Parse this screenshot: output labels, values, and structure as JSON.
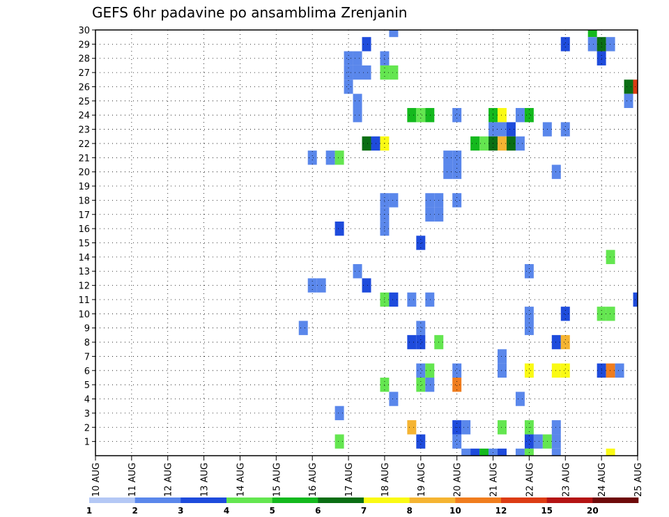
{
  "chart_data": {
    "type": "heatmap",
    "title": "GEFS 6hr padavine po ansamblima Zrenjanin",
    "xlabel": "",
    "ylabel": "",
    "x_ticks": [
      "10 AUG",
      "11 AUG",
      "12 AUG",
      "13 AUG",
      "14 AUG",
      "15 AUG",
      "16 AUG",
      "17 AUG",
      "18 AUG",
      "19 AUG",
      "20 AUG",
      "21 AUG",
      "22 AUG",
      "23 AUG",
      "24 AUG",
      "25 AUG"
    ],
    "x_unit": "days since 10 AUG",
    "x_range": [
      0,
      15
    ],
    "y_ticks": [
      1,
      2,
      3,
      4,
      5,
      6,
      7,
      8,
      9,
      10,
      11,
      12,
      13,
      14,
      15,
      16,
      17,
      18,
      19,
      20,
      21,
      22,
      23,
      24,
      25,
      26,
      27,
      28,
      29,
      30
    ],
    "y_range": [
      0,
      30
    ],
    "grid": true,
    "colorbar": {
      "levels": [
        "1",
        "2",
        "3",
        "4",
        "5",
        "6",
        "7",
        "8",
        "10",
        "12",
        "15",
        "20"
      ],
      "colors": [
        "#b4c8f5",
        "#5a87eb",
        "#1e4bdc",
        "#64e650",
        "#14b91e",
        "#0a6e14",
        "#fafa14",
        "#f5b432",
        "#f07d1e",
        "#dc3c14",
        "#b41414",
        "#6e0a0a"
      ]
    },
    "cells": [
      [
        8.25,
        30,
        1
      ],
      [
        13.75,
        30,
        4
      ],
      [
        7.5,
        29,
        2
      ],
      [
        13,
        29,
        2
      ],
      [
        13.75,
        29,
        1
      ],
      [
        14,
        29,
        5
      ],
      [
        14.25,
        29,
        1
      ],
      [
        7,
        28,
        1
      ],
      [
        7.25,
        28,
        1
      ],
      [
        8,
        28,
        1
      ],
      [
        14,
        28,
        2
      ],
      [
        7,
        27,
        1
      ],
      [
        7.25,
        27,
        1
      ],
      [
        7.5,
        27,
        1
      ],
      [
        8,
        27,
        3
      ],
      [
        8.25,
        27,
        3
      ],
      [
        7,
        26,
        1
      ],
      [
        14.75,
        26,
        5
      ],
      [
        15,
        26,
        9
      ],
      [
        7.25,
        25,
        1
      ],
      [
        14.75,
        25,
        1
      ],
      [
        7.25,
        24,
        1
      ],
      [
        8.75,
        24,
        4
      ],
      [
        9,
        24,
        3
      ],
      [
        9.25,
        24,
        4
      ],
      [
        10,
        24,
        1
      ],
      [
        11,
        24,
        4
      ],
      [
        11.25,
        24,
        6
      ],
      [
        11.75,
        24,
        1
      ],
      [
        12,
        24,
        4
      ],
      [
        11,
        23,
        1
      ],
      [
        11.25,
        23,
        1
      ],
      [
        11.5,
        23,
        2
      ],
      [
        12.5,
        23,
        1
      ],
      [
        13,
        23,
        1
      ],
      [
        7.5,
        22,
        5
      ],
      [
        7.75,
        22,
        2
      ],
      [
        8,
        22,
        6
      ],
      [
        10.5,
        22,
        4
      ],
      [
        10.75,
        22,
        3
      ],
      [
        11,
        22,
        5
      ],
      [
        11.25,
        22,
        7
      ],
      [
        11.5,
        22,
        5
      ],
      [
        11.75,
        22,
        1
      ],
      [
        6,
        21,
        1
      ],
      [
        6.5,
        21,
        1
      ],
      [
        6.75,
        21,
        3
      ],
      [
        9.75,
        21,
        1
      ],
      [
        10,
        21,
        1
      ],
      [
        9.75,
        20,
        1
      ],
      [
        10,
        20,
        1
      ],
      [
        12.75,
        20,
        1
      ],
      [
        8,
        18,
        1
      ],
      [
        8.25,
        18,
        1
      ],
      [
        9.25,
        18,
        1
      ],
      [
        9.5,
        18,
        1
      ],
      [
        10,
        18,
        1
      ],
      [
        8,
        17,
        1
      ],
      [
        9.25,
        17,
        1
      ],
      [
        9.5,
        17,
        1
      ],
      [
        6.75,
        16,
        2
      ],
      [
        8,
        16,
        1
      ],
      [
        9,
        15,
        2
      ],
      [
        14.25,
        14,
        3
      ],
      [
        7.25,
        13,
        1
      ],
      [
        12,
        13,
        1
      ],
      [
        6,
        12,
        1
      ],
      [
        6.25,
        12,
        1
      ],
      [
        7.5,
        12,
        2
      ],
      [
        8,
        11,
        3
      ],
      [
        8.25,
        11,
        2
      ],
      [
        8.75,
        11,
        1
      ],
      [
        9.25,
        11,
        1
      ],
      [
        15,
        11,
        2
      ],
      [
        12,
        10,
        1
      ],
      [
        13,
        10,
        2
      ],
      [
        14,
        10,
        3
      ],
      [
        14.25,
        10,
        3
      ],
      [
        5.75,
        9,
        1
      ],
      [
        9,
        9,
        1
      ],
      [
        12,
        9,
        1
      ],
      [
        8.75,
        8,
        2
      ],
      [
        9,
        8,
        2
      ],
      [
        9.5,
        8,
        3
      ],
      [
        12.75,
        8,
        2
      ],
      [
        13,
        8,
        7
      ],
      [
        11.25,
        7,
        1
      ],
      [
        9,
        6,
        1
      ],
      [
        9.25,
        6,
        3
      ],
      [
        10,
        6,
        1
      ],
      [
        11.25,
        6,
        1
      ],
      [
        12,
        6,
        6
      ],
      [
        12.75,
        6,
        6
      ],
      [
        13,
        6,
        6
      ],
      [
        14,
        6,
        2
      ],
      [
        14.25,
        6,
        8
      ],
      [
        14.5,
        6,
        1
      ],
      [
        8,
        5,
        3
      ],
      [
        9,
        5,
        3
      ],
      [
        9.25,
        5,
        1
      ],
      [
        10,
        5,
        8
      ],
      [
        8.25,
        4,
        1
      ],
      [
        11.75,
        4,
        1
      ],
      [
        6.75,
        3,
        1
      ],
      [
        8.75,
        2,
        7
      ],
      [
        10,
        2,
        2
      ],
      [
        10.25,
        2,
        1
      ],
      [
        11.25,
        2,
        3
      ],
      [
        12,
        2,
        3
      ],
      [
        12.75,
        2,
        1
      ],
      [
        6.75,
        1,
        3
      ],
      [
        9,
        1,
        2
      ],
      [
        10,
        1,
        1
      ],
      [
        12,
        1,
        2
      ],
      [
        12.25,
        1,
        1
      ],
      [
        12.5,
        1,
        3
      ],
      [
        12.75,
        1,
        1
      ],
      [
        10.25,
        0,
        1
      ],
      [
        10.5,
        0,
        2
      ],
      [
        10.75,
        0,
        4
      ],
      [
        11,
        0,
        1
      ],
      [
        11.25,
        0,
        2
      ],
      [
        11.75,
        0,
        1
      ],
      [
        12,
        0,
        3
      ],
      [
        12.75,
        0,
        1
      ],
      [
        14.25,
        0,
        6
      ]
    ]
  }
}
